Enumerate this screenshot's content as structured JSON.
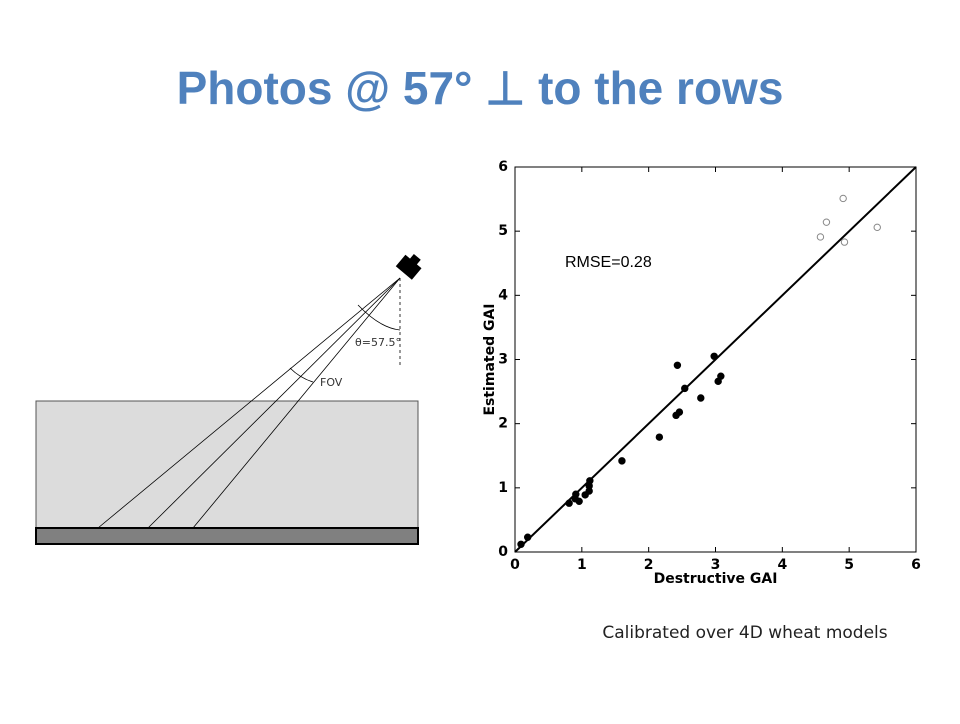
{
  "title": "Photos @ 57° ⊥ to the rows",
  "diagram": {
    "angle_label": "θ=57.5°",
    "fov_label": "FOV"
  },
  "chart_data": {
    "type": "scatter",
    "xlabel": "Destructive GAI",
    "ylabel": "Estimated GAI",
    "annotation": "RMSE=0.28",
    "xlim": [
      0,
      6
    ],
    "ylim": [
      0,
      6
    ],
    "xticks": [
      0,
      1,
      2,
      3,
      4,
      5,
      6
    ],
    "yticks": [
      0,
      1,
      2,
      3,
      4,
      5,
      6
    ],
    "series": [
      {
        "color": "#000000",
        "filled": true,
        "x": [
          0.09,
          0.19,
          0.81,
          0.9,
          0.91,
          0.96,
          1.05,
          1.11,
          1.11,
          1.12,
          1.6,
          2.16,
          2.43,
          2.41,
          2.46,
          2.54,
          2.78,
          2.98,
          3.04,
          3.08
        ],
        "values": [
          0.12,
          0.23,
          0.76,
          0.83,
          0.9,
          0.79,
          0.89,
          0.95,
          1.03,
          1.11,
          1.42,
          1.79,
          2.91,
          2.13,
          2.18,
          2.55,
          2.4,
          3.05,
          2.66,
          2.74
        ]
      },
      {
        "color": "#888888",
        "filled": false,
        "x": [
          4.57,
          4.66,
          4.91,
          4.93,
          5.42
        ],
        "values": [
          4.91,
          5.14,
          5.51,
          4.83,
          5.06
        ]
      }
    ]
  },
  "caption": "Calibrated over 4D wheat models"
}
